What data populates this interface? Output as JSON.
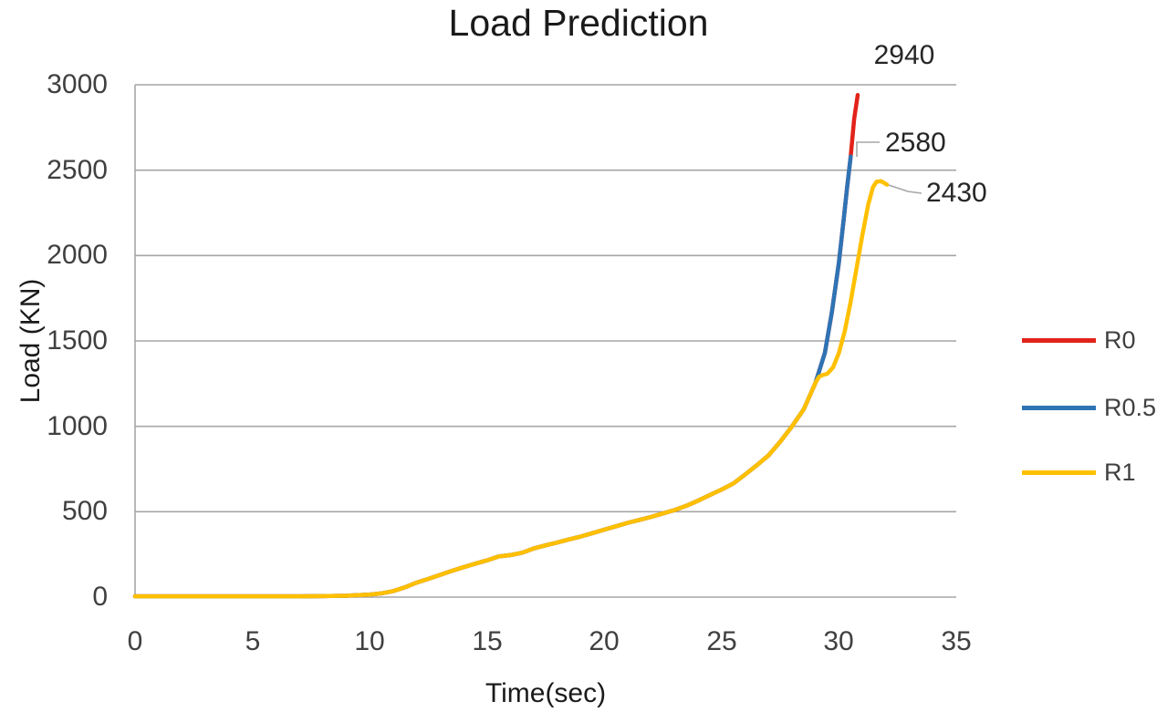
{
  "colors": {
    "background": "#ffffff",
    "gridline": "#a6a6a6",
    "axis": "#a6a6a6",
    "leader_line": "#a6a6a6",
    "tick_text": "#404040",
    "title_text": "#1a1a1a",
    "annotation_text": "#262626"
  },
  "chart_data": {
    "type": "line",
    "title": "Load Prediction",
    "xlabel": "Time(sec)",
    "ylabel": "Load (KN)",
    "xlim": [
      0,
      35
    ],
    "ylim": [
      0,
      3000
    ],
    "x_ticks": [
      0,
      5,
      10,
      15,
      20,
      25,
      30,
      35
    ],
    "y_ticks": [
      0,
      500,
      1000,
      1500,
      2000,
      2500,
      3000
    ],
    "grid": "horizontal",
    "legend_position": "right",
    "series": [
      {
        "name": "R0",
        "color": "#e2231a",
        "final_value": 2940,
        "points": [
          [
            0,
            5
          ],
          [
            1,
            5
          ],
          [
            2,
            5
          ],
          [
            3,
            5
          ],
          [
            4,
            5
          ],
          [
            5,
            5
          ],
          [
            6,
            5
          ],
          [
            7,
            5
          ],
          [
            8,
            6
          ],
          [
            9,
            8
          ],
          [
            10,
            15
          ],
          [
            10.5,
            22
          ],
          [
            11,
            35
          ],
          [
            11.5,
            57
          ],
          [
            12,
            85
          ],
          [
            12.5,
            107
          ],
          [
            13,
            130
          ],
          [
            13.5,
            153
          ],
          [
            14,
            175
          ],
          [
            14.5,
            196
          ],
          [
            15,
            215
          ],
          [
            15.5,
            238
          ],
          [
            16,
            246
          ],
          [
            16.5,
            260
          ],
          [
            17,
            285
          ],
          [
            17.5,
            303
          ],
          [
            18,
            320
          ],
          [
            18.5,
            338
          ],
          [
            19,
            355
          ],
          [
            19.5,
            375
          ],
          [
            20,
            395
          ],
          [
            20.5,
            415
          ],
          [
            21,
            435
          ],
          [
            21.5,
            452
          ],
          [
            22,
            470
          ],
          [
            22.5,
            490
          ],
          [
            23,
            510
          ],
          [
            23.5,
            535
          ],
          [
            24,
            565
          ],
          [
            24.5,
            598
          ],
          [
            25,
            630
          ],
          [
            25.5,
            665
          ],
          [
            26,
            718
          ],
          [
            26.5,
            772
          ],
          [
            27,
            830
          ],
          [
            27.5,
            910
          ],
          [
            28,
            1000
          ],
          [
            28.5,
            1100
          ],
          [
            29,
            1255
          ],
          [
            29.4,
            1430
          ],
          [
            29.7,
            1670
          ],
          [
            30,
            1960
          ],
          [
            30.2,
            2210
          ],
          [
            30.35,
            2400
          ],
          [
            30.5,
            2580
          ],
          [
            30.65,
            2800
          ],
          [
            30.8,
            2940
          ]
        ]
      },
      {
        "name": "R0.5",
        "color": "#2e74b5",
        "final_value": 2580,
        "points": [
          [
            0,
            5
          ],
          [
            1,
            5
          ],
          [
            2,
            5
          ],
          [
            3,
            5
          ],
          [
            4,
            5
          ],
          [
            5,
            5
          ],
          [
            6,
            5
          ],
          [
            7,
            5
          ],
          [
            8,
            6
          ],
          [
            9,
            8
          ],
          [
            10,
            15
          ],
          [
            10.5,
            22
          ],
          [
            11,
            35
          ],
          [
            11.5,
            57
          ],
          [
            12,
            85
          ],
          [
            12.5,
            107
          ],
          [
            13,
            130
          ],
          [
            13.5,
            153
          ],
          [
            14,
            175
          ],
          [
            14.5,
            196
          ],
          [
            15,
            215
          ],
          [
            15.5,
            238
          ],
          [
            16,
            246
          ],
          [
            16.5,
            260
          ],
          [
            17,
            285
          ],
          [
            17.5,
            303
          ],
          [
            18,
            320
          ],
          [
            18.5,
            338
          ],
          [
            19,
            355
          ],
          [
            19.5,
            375
          ],
          [
            20,
            395
          ],
          [
            20.5,
            415
          ],
          [
            21,
            435
          ],
          [
            21.5,
            452
          ],
          [
            22,
            470
          ],
          [
            22.5,
            490
          ],
          [
            23,
            510
          ],
          [
            23.5,
            535
          ],
          [
            24,
            565
          ],
          [
            24.5,
            598
          ],
          [
            25,
            630
          ],
          [
            25.5,
            665
          ],
          [
            26,
            718
          ],
          [
            26.5,
            772
          ],
          [
            27,
            830
          ],
          [
            27.5,
            910
          ],
          [
            28,
            1000
          ],
          [
            28.5,
            1100
          ],
          [
            29,
            1255
          ],
          [
            29.4,
            1430
          ],
          [
            29.7,
            1670
          ],
          [
            30,
            1960
          ],
          [
            30.2,
            2210
          ],
          [
            30.35,
            2400
          ],
          [
            30.5,
            2580
          ]
        ]
      },
      {
        "name": "R1",
        "color": "#ffc000",
        "final_value": 2430,
        "points": [
          [
            0,
            5
          ],
          [
            1,
            5
          ],
          [
            2,
            5
          ],
          [
            3,
            5
          ],
          [
            4,
            5
          ],
          [
            5,
            5
          ],
          [
            6,
            5
          ],
          [
            7,
            5
          ],
          [
            8,
            6
          ],
          [
            9,
            8
          ],
          [
            10,
            15
          ],
          [
            10.5,
            22
          ],
          [
            11,
            35
          ],
          [
            11.5,
            57
          ],
          [
            12,
            85
          ],
          [
            12.5,
            107
          ],
          [
            13,
            130
          ],
          [
            13.5,
            153
          ],
          [
            14,
            175
          ],
          [
            14.5,
            196
          ],
          [
            15,
            215
          ],
          [
            15.5,
            238
          ],
          [
            16,
            246
          ],
          [
            16.5,
            260
          ],
          [
            17,
            285
          ],
          [
            17.5,
            303
          ],
          [
            18,
            320
          ],
          [
            18.5,
            338
          ],
          [
            19,
            355
          ],
          [
            19.5,
            375
          ],
          [
            20,
            395
          ],
          [
            20.5,
            415
          ],
          [
            21,
            435
          ],
          [
            21.5,
            452
          ],
          [
            22,
            470
          ],
          [
            22.5,
            490
          ],
          [
            23,
            510
          ],
          [
            23.5,
            535
          ],
          [
            24,
            565
          ],
          [
            24.5,
            598
          ],
          [
            25,
            630
          ],
          [
            25.5,
            665
          ],
          [
            26,
            718
          ],
          [
            26.5,
            772
          ],
          [
            27,
            830
          ],
          [
            27.5,
            910
          ],
          [
            28,
            1000
          ],
          [
            28.5,
            1100
          ],
          [
            29,
            1255
          ],
          [
            29.15,
            1290
          ],
          [
            29.3,
            1300
          ],
          [
            29.5,
            1308
          ],
          [
            29.75,
            1345
          ],
          [
            30,
            1430
          ],
          [
            30.25,
            1560
          ],
          [
            30.5,
            1730
          ],
          [
            30.75,
            1925
          ],
          [
            31,
            2120
          ],
          [
            31.25,
            2300
          ],
          [
            31.45,
            2400
          ],
          [
            31.6,
            2432
          ],
          [
            31.8,
            2436
          ],
          [
            32.05,
            2415
          ]
        ]
      }
    ],
    "annotations": [
      {
        "text": "2940",
        "series": "R0",
        "value": 2940
      },
      {
        "text": "2580",
        "series": "R0.5",
        "value": 2580
      },
      {
        "text": "2430",
        "series": "R1",
        "value": 2430
      }
    ]
  }
}
